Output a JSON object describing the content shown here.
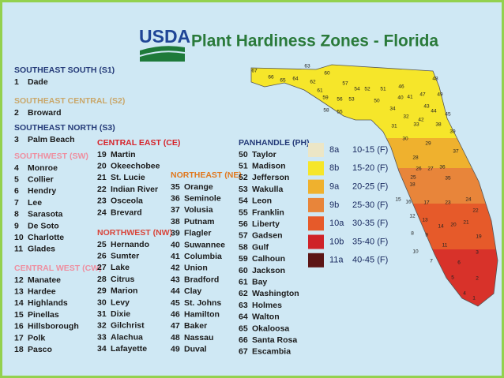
{
  "header": {
    "agency": "USDA",
    "title": "Plant Hardiness Zones - Florida"
  },
  "regions": [
    {
      "name": "SOUTHEAST SOUTH (S1)",
      "color": "#243a78",
      "counties": [
        {
          "num": "1",
          "name": "Dade"
        }
      ]
    },
    {
      "name": "SOUTHEAST CENTRAL (S2)",
      "color": "#c9a76a",
      "counties": [
        {
          "num": "2",
          "name": "Broward"
        }
      ]
    },
    {
      "name": "SOUTHEAST NORTH (S3)",
      "color": "#243a78",
      "counties": [
        {
          "num": "3",
          "name": "Palm Beach"
        }
      ]
    },
    {
      "name": "SOUTHWEST (SW)",
      "color": "#ee8fa0",
      "counties": [
        {
          "num": "4",
          "name": "Monroe"
        },
        {
          "num": "5",
          "name": "Collier"
        },
        {
          "num": "6",
          "name": "Hendry"
        },
        {
          "num": "7",
          "name": "Lee"
        },
        {
          "num": "8",
          "name": "Sarasota"
        },
        {
          "num": "9",
          "name": "De Soto"
        },
        {
          "num": "10",
          "name": "Charlotte"
        },
        {
          "num": "11",
          "name": "Glades"
        }
      ]
    },
    {
      "name": "CENTRAL WEST (CW)",
      "color": "#ee8fa0",
      "counties": [
        {
          "num": "12",
          "name": "Manatee"
        },
        {
          "num": "13",
          "name": "Hardee"
        },
        {
          "num": "14",
          "name": "Highlands"
        },
        {
          "num": "15",
          "name": "Pinellas"
        },
        {
          "num": "16",
          "name": "Hillsborough"
        },
        {
          "num": "17",
          "name": "Polk"
        },
        {
          "num": "18",
          "name": "Pasco"
        }
      ]
    },
    {
      "name": "CENTRAL EAST (CE)",
      "color": "#d6232a",
      "counties": [
        {
          "num": "19",
          "name": "Martin"
        },
        {
          "num": "20",
          "name": "Okeechobee"
        },
        {
          "num": "21",
          "name": "St. Lucie"
        },
        {
          "num": "22",
          "name": "Indian River"
        },
        {
          "num": "23",
          "name": "Osceola"
        },
        {
          "num": "24",
          "name": "Brevard"
        }
      ]
    },
    {
      "name": "NORTHWEST (NW)",
      "color": "#d8453a",
      "counties": [
        {
          "num": "25",
          "name": "Hernando"
        },
        {
          "num": "26",
          "name": "Sumter"
        },
        {
          "num": "27",
          "name": "Lake"
        },
        {
          "num": "28",
          "name": "Citrus"
        },
        {
          "num": "29",
          "name": "Marion"
        },
        {
          "num": "30",
          "name": "Levy"
        },
        {
          "num": "31",
          "name": "Dixie"
        },
        {
          "num": "32",
          "name": "Gilchrist"
        },
        {
          "num": "33",
          "name": "Alachua"
        },
        {
          "num": "34",
          "name": "Lafayette"
        }
      ]
    },
    {
      "name": "NORTHEAST (NE)",
      "color": "#e0781e",
      "counties": [
        {
          "num": "35",
          "name": "Orange"
        },
        {
          "num": "36",
          "name": "Seminole"
        },
        {
          "num": "37",
          "name": "Volusia"
        },
        {
          "num": "38",
          "name": "Putnam"
        },
        {
          "num": "39",
          "name": "Flagler"
        },
        {
          "num": "40",
          "name": "Suwannee"
        },
        {
          "num": "41",
          "name": "Columbia"
        },
        {
          "num": "42",
          "name": "Union"
        },
        {
          "num": "43",
          "name": "Bradford"
        },
        {
          "num": "44",
          "name": "Clay"
        },
        {
          "num": "45",
          "name": "St. Johns"
        },
        {
          "num": "46",
          "name": "Hamilton"
        },
        {
          "num": "47",
          "name": "Baker"
        },
        {
          "num": "48",
          "name": "Nassau"
        },
        {
          "num": "49",
          "name": "Duval"
        }
      ]
    },
    {
      "name": "PANHANDLE (PH)",
      "color": "#243a78",
      "counties": [
        {
          "num": "50",
          "name": "Taylor"
        },
        {
          "num": "51",
          "name": "Madison"
        },
        {
          "num": "52",
          "name": "Jefferson"
        },
        {
          "num": "53",
          "name": "Wakulla"
        },
        {
          "num": "54",
          "name": "Leon"
        },
        {
          "num": "55",
          "name": "Franklin"
        },
        {
          "num": "56",
          "name": "Liberty"
        },
        {
          "num": "57",
          "name": "Gadsen"
        },
        {
          "num": "58",
          "name": "Gulf"
        },
        {
          "num": "59",
          "name": "Calhoun"
        },
        {
          "num": "60",
          "name": "Jackson"
        },
        {
          "num": "61",
          "name": "Bay"
        },
        {
          "num": "62",
          "name": "Washington"
        },
        {
          "num": "63",
          "name": "Holmes"
        },
        {
          "num": "64",
          "name": "Walton"
        },
        {
          "num": "65",
          "name": "Okaloosa"
        },
        {
          "num": "66",
          "name": "Santa Rosa"
        },
        {
          "num": "67",
          "name": "Escambia"
        }
      ]
    }
  ],
  "legend": [
    {
      "zone": "8a",
      "range": "10-15 (F)",
      "color": "#ece6c6"
    },
    {
      "zone": "8b",
      "range": "15-20 (F)",
      "color": "#f6e62a"
    },
    {
      "zone": "9a",
      "range": "20-25 (F)",
      "color": "#efb12e"
    },
    {
      "zone": "9b",
      "range": "25-30 (F)",
      "color": "#e8853a"
    },
    {
      "zone": "10a",
      "range": "30-35 (F)",
      "color": "#e65a2a"
    },
    {
      "zone": "10b",
      "range": "35-40 (F)",
      "color": "#cf2228"
    },
    {
      "zone": "11a",
      "range": "40-45 (F)",
      "color": "#5c1515"
    }
  ],
  "map_labels": [
    "67",
    "66",
    "65",
    "64",
    "63",
    "60",
    "62",
    "61",
    "59",
    "58",
    "55",
    "56",
    "53",
    "57",
    "54",
    "52",
    "51",
    "50",
    "46",
    "40",
    "41",
    "47",
    "48",
    "49",
    "43",
    "44",
    "34",
    "32",
    "42",
    "45",
    "31",
    "33",
    "38",
    "39",
    "30",
    "29",
    "37",
    "28",
    "26",
    "27",
    "36",
    "25",
    "35",
    "18",
    "15",
    "16",
    "17",
    "23",
    "24",
    "12",
    "13",
    "14",
    "20",
    "21",
    "22",
    "8",
    "9",
    "11",
    "19",
    "10",
    "3",
    "7",
    "6",
    "5",
    "2",
    "4",
    "1"
  ]
}
